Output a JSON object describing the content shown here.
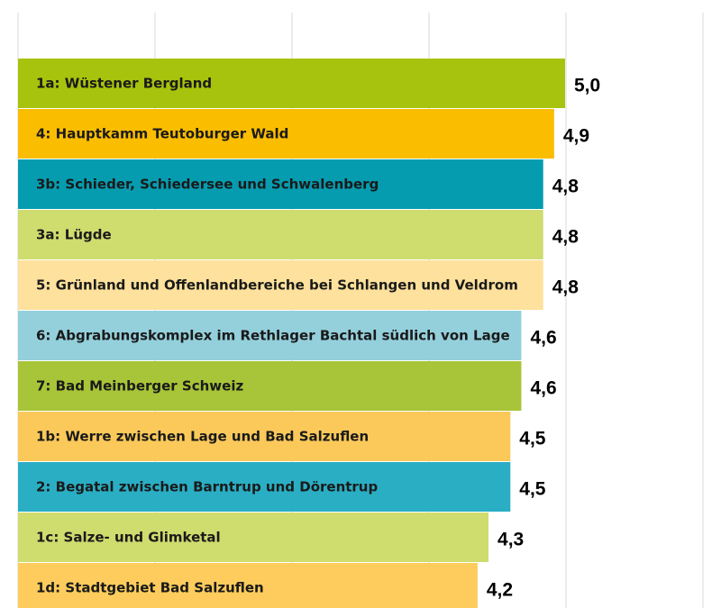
{
  "chart_data": {
    "type": "bar",
    "orientation": "horizontal",
    "grid": true,
    "xlim": [
      0,
      5
    ],
    "categories": [
      "1a: Wüstener Bergland",
      "4: Hauptkamm Teutoburger Wald",
      "3b: Schieder, Schiedersee und Schwalenberg",
      "3a: Lügde",
      "5: Grünland und Offenlandbereiche bei Schlangen und Veldrom",
      "6: Abgrabungskomplex im Rethlager Bachtal südlich von Lage",
      "7: Bad Meinberger Schweiz",
      "1b: Werre zwischen Lage und Bad Salzuflen",
      " 2: Begatal zwischen Barntrup und Dörentrup",
      "1c: Salze- und Glimketal",
      "1d: Stadtgebiet Bad Salzuflen"
    ],
    "values": [
      5.0,
      4.9,
      4.8,
      4.8,
      4.8,
      4.6,
      4.6,
      4.5,
      4.5,
      4.3,
      4.2
    ],
    "value_labels": [
      "5,0",
      "4,9",
      "4,8",
      "4,8",
      "4,8",
      "4,6",
      "4,6",
      "4,5",
      "4,5",
      "4,3",
      "4,2"
    ],
    "colors": [
      "#a8c30d",
      "#fbbd00",
      "#069cb0",
      "#cfdc6e",
      "#fde19c",
      "#94d0dc",
      "#a8c438",
      "#fbc95a",
      "#2aaec4",
      "#cfdc6e",
      "#fdcc5c"
    ]
  }
}
